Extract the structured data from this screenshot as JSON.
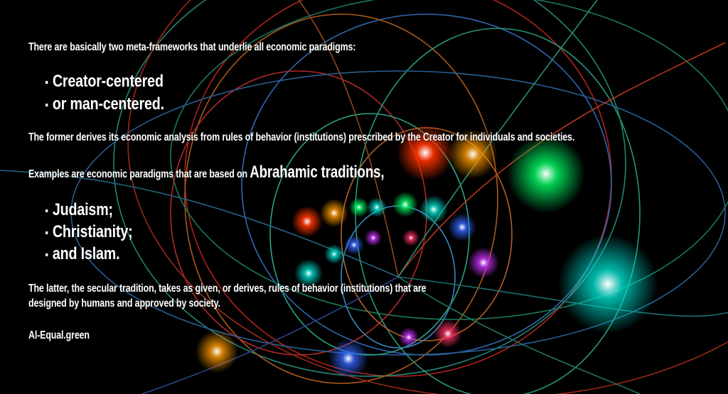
{
  "intro": "There are basically two meta-frameworks that underlie all economic paradigms:",
  "frameworks": [
    "Creator-centered",
    "or man-centered."
  ],
  "former": "The former derives its economic analysis from rules of behavior (institutions)  prescribed by the Creator for individuals and societies.",
  "examples_prefix": "Examples are economic paradigms that are based on ",
  "examples_emphasis": "Abrahamic traditions,",
  "traditions": [
    "Judaism;",
    "Christianity;",
    "and Islam."
  ],
  "latter_line1": "The latter, the secular tradition, takes as given, or derives, rules of behavior (institutions) that are",
  "latter_line2": "designed by humans and approved by society.",
  "credit": "Al-Equal.green",
  "colors": {
    "background": "#000000",
    "text": "#ffffff"
  }
}
